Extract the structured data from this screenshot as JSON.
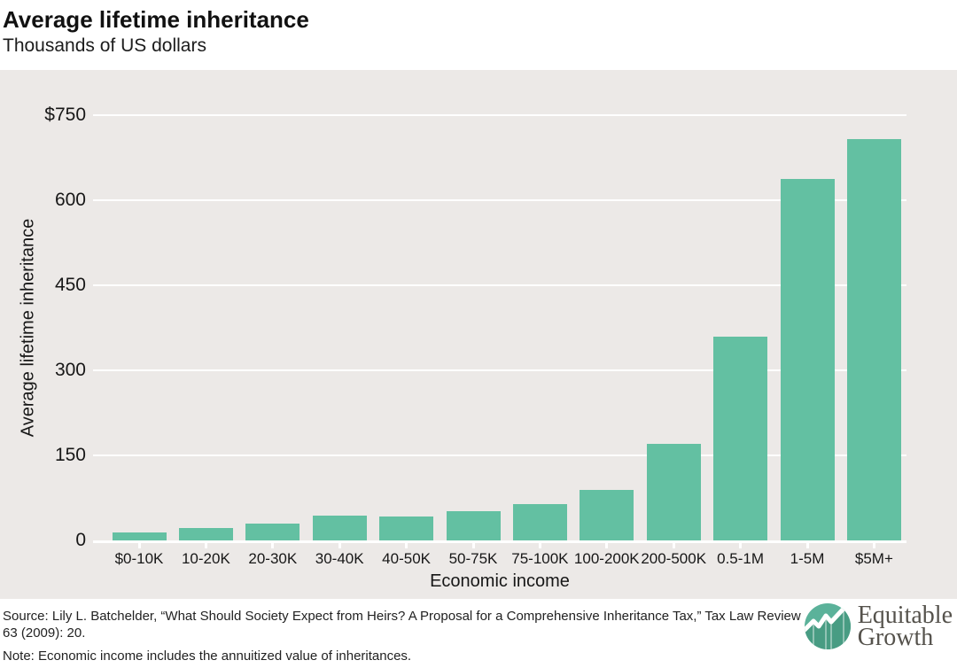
{
  "header": {
    "title": "Average lifetime inheritance",
    "subtitle": "Thousands of US dollars"
  },
  "chart_data": {
    "type": "bar",
    "title": "Average lifetime inheritance",
    "subtitle": "Thousands of US dollars",
    "xlabel": "Economic income",
    "ylabel": "Average lifetime inheritance",
    "units": "Thousands of US dollars",
    "categories": [
      "$0-10K",
      "10-20K",
      "20-30K",
      "30-40K",
      "40-50K",
      "50-75K",
      "75-100K",
      "100-200K",
      "200-500K",
      "0.5-1M",
      "1-5M",
      "$5M+"
    ],
    "values": [
      14,
      22,
      30,
      43,
      42,
      51,
      64,
      89,
      170,
      360,
      638,
      708
    ],
    "ylim": [
      0,
      750
    ],
    "yticks": [
      {
        "label": "$750",
        "value": 750
      },
      {
        "label": "600",
        "value": 600
      },
      {
        "label": "450",
        "value": 450
      },
      {
        "label": "300",
        "value": 300
      },
      {
        "label": "150",
        "value": 150
      },
      {
        "label": "0",
        "value": 0
      }
    ],
    "grid": true,
    "legend_position": "none",
    "bar_color": "#63c0a2",
    "plot_background": "#ece9e7",
    "gridline_color": "#ffffff"
  },
  "footer": {
    "source": "Source: Lily L. Batchelder, “What Should Society Expect from Heirs? A Proposal for a Comprehensive Inheritance Tax,” Tax Law Review 63 (2009): 20.",
    "note": "Note: Economic income includes the annuitized value of inheritances.",
    "logo": {
      "name_line1": "Equitable",
      "name_line2": "Growth",
      "icon": "growth-line-chart-icon",
      "icon_color": "#5bb29a",
      "icon_dark_color": "#489c83",
      "text_color": "#55524c"
    }
  }
}
